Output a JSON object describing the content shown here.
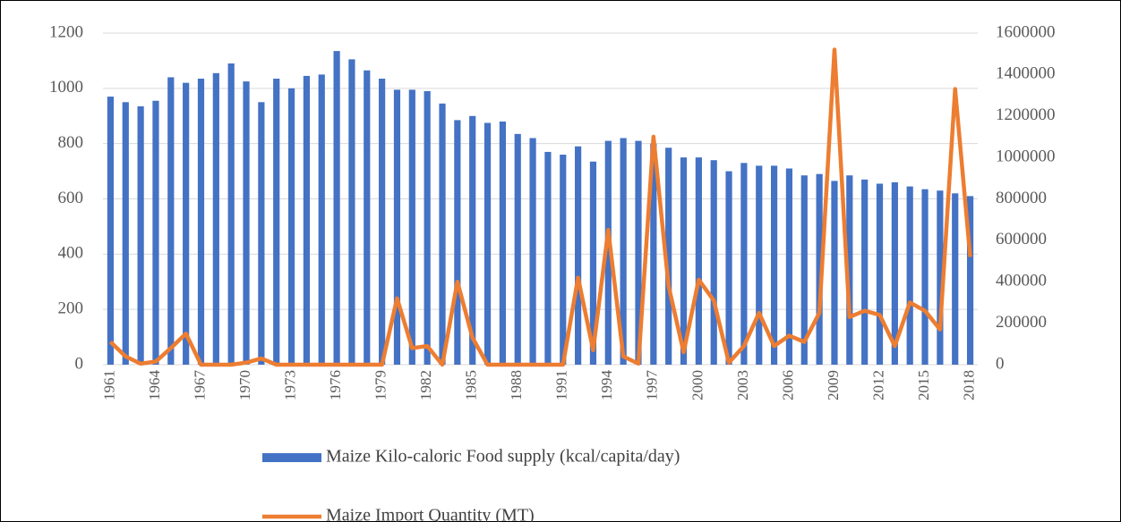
{
  "chart_data": {
    "type": "combo",
    "categories": [
      "1961",
      null,
      null,
      "1964",
      null,
      null,
      "1967",
      null,
      null,
      "1970",
      null,
      null,
      "1973",
      null,
      null,
      "1976",
      null,
      null,
      "1979",
      null,
      null,
      "1982",
      null,
      null,
      "1985",
      null,
      null,
      "1988",
      null,
      null,
      "1991",
      null,
      null,
      "1994",
      null,
      null,
      "1997",
      null,
      null,
      "2000",
      null,
      null,
      "2003",
      null,
      null,
      "2006",
      null,
      null,
      "2009",
      null,
      null,
      "2012",
      null,
      null,
      "2015",
      null,
      null,
      "2018"
    ],
    "series": [
      {
        "name": "Maize Kilo-caloric Food supply (kcal/capita/day)",
        "type": "bar",
        "color": "#4472c4",
        "values": [
          970,
          950,
          935,
          955,
          1040,
          1020,
          1035,
          1055,
          1090,
          1025,
          950,
          1035,
          1000,
          1045,
          1050,
          1135,
          1105,
          1065,
          1035,
          995,
          995,
          990,
          945,
          885,
          900,
          875,
          880,
          835,
          820,
          770,
          760,
          790,
          735,
          810,
          820,
          810,
          800,
          785,
          750,
          750,
          740,
          700,
          730,
          720,
          720,
          710,
          685,
          690,
          665,
          685,
          670,
          655,
          660,
          645,
          635,
          630,
          620,
          610
        ]
      },
      {
        "name": "Maize Import Quantity (MT)",
        "type": "line",
        "color": "#ed7d31",
        "axis": "y2",
        "values": [
          110000,
          40000,
          5000,
          15000,
          80000,
          150000,
          0,
          0,
          0,
          10000,
          30000,
          0,
          0,
          0,
          0,
          0,
          0,
          0,
          0,
          320000,
          80000,
          90000,
          0,
          400000,
          130000,
          0,
          0,
          0,
          0,
          0,
          0,
          420000,
          70000,
          650000,
          40000,
          5000,
          1100000,
          380000,
          60000,
          410000,
          310000,
          10000,
          90000,
          250000,
          90000,
          140000,
          110000,
          250000,
          1520000,
          230000,
          260000,
          240000,
          90000,
          300000,
          260000,
          170000,
          1330000,
          520000
        ]
      }
    ],
    "ylim": [
      0,
      1200
    ],
    "yticks": [
      0,
      200,
      400,
      600,
      800,
      1000,
      1200
    ],
    "y2lim": [
      0,
      1600000
    ],
    "y2ticks": [
      0,
      200000,
      400000,
      600000,
      800000,
      1000000,
      1200000,
      1400000,
      1600000
    ],
    "grid": true,
    "legend": "bottom"
  }
}
